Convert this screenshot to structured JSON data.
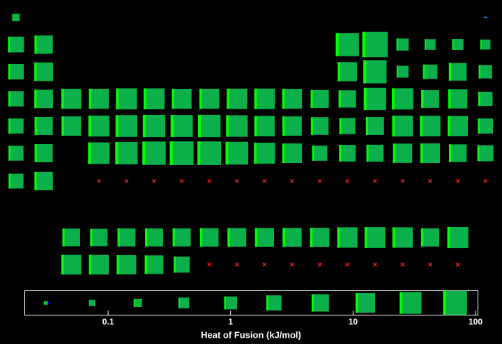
{
  "chart_data": {
    "type": "glyph",
    "xlabel": "Heat of Fusion (kJ/mol)",
    "log": true,
    "xlim": [
      0.0207,
      104
    ],
    "xticks": [
      0.1,
      1,
      10,
      100
    ],
    "color": "#0cb04a",
    "edge_color": "#00ff00",
    "link_color": "#0000ff",
    "missing_color": "#e0201a",
    "series": [
      {
        "x": [
          1,
          18
        ],
        "values": [
          0.117,
          0.0138
        ]
      },
      {
        "x": [
          1,
          2,
          13,
          14,
          15,
          16,
          17,
          18
        ],
        "values": [
          3,
          7.9,
          50.2,
          117,
          0.72,
          0.444,
          0.51,
          0.335
        ]
      },
      {
        "x": [
          1,
          2,
          13,
          14,
          15,
          16,
          17,
          18
        ],
        "values": [
          2.6,
          8.7,
          10.7,
          50.2,
          0.66,
          1.73,
          6.4,
          1.18
        ]
      },
      {
        "x": [
          1,
          2,
          3,
          4,
          5,
          6,
          7,
          8,
          9,
          10,
          11,
          12,
          13,
          14,
          15,
          16,
          17,
          18
        ],
        "values": [
          2.33,
          8.54,
          14.1,
          14.15,
          21.5,
          21,
          12.91,
          13.81,
          16.2,
          17.48,
          13.26,
          7.32,
          5.59,
          36.94,
          24.44,
          6.69,
          10.57,
          1.64
        ]
      },
      {
        "x": [
          1,
          2,
          3,
          4,
          5,
          6,
          7,
          8,
          9,
          10,
          11,
          12,
          13,
          14,
          15,
          16,
          17,
          18
        ],
        "values": [
          2.19,
          7.43,
          11.4,
          21,
          30,
          37.48,
          33.29,
          38.59,
          26.59,
          16.74,
          11.28,
          6.21,
          3.28,
          7.03,
          19.79,
          17.49,
          15.52,
          2.27
        ]
      },
      {
        "x": [
          1,
          2,
          4,
          5,
          6,
          7,
          8,
          9,
          10,
          11,
          12,
          13,
          14,
          15,
          16,
          17,
          18
        ],
        "values": [
          2.09,
          7.12,
          27.2,
          36.57,
          52.31,
          60.43,
          57.85,
          41.12,
          22.17,
          12.55,
          2.29,
          4.14,
          4.77,
          11.3,
          13,
          6,
          3.247
        ]
      },
      {
        "x": [
          1,
          2,
          4,
          5,
          6,
          7,
          8,
          9,
          10,
          11,
          12,
          13,
          14,
          15,
          16,
          17,
          18
        ],
        "values": [
          2,
          8,
          null,
          null,
          null,
          null,
          null,
          null,
          null,
          null,
          null,
          null,
          null,
          null,
          null,
          null,
          null
        ]
      },
      {
        "x": [
          3,
          4,
          5,
          6,
          7,
          8,
          9,
          10,
          11,
          12,
          13,
          14,
          15,
          16,
          17
        ],
        "values": [
          6.2,
          5.46,
          6.89,
          7.14,
          7.13,
          8.62,
          9.21,
          10.05,
          10.15,
          11.06,
          17,
          19.9,
          16.84,
          7.66,
          22
        ]
      },
      {
        "x": [
          3,
          4,
          5,
          6,
          7,
          8,
          9,
          10,
          11,
          12,
          13,
          14,
          15,
          16,
          17
        ],
        "values": [
          14,
          13.81,
          12.34,
          9.14,
          3.2,
          null,
          null,
          null,
          null,
          null,
          null,
          null,
          null,
          null,
          null
        ]
      }
    ],
    "legend_values": [
      0.031,
      0.074,
      0.175,
      0.415,
      1,
      2.26,
      5.4,
      12.6,
      29.5,
      68
    ]
  }
}
